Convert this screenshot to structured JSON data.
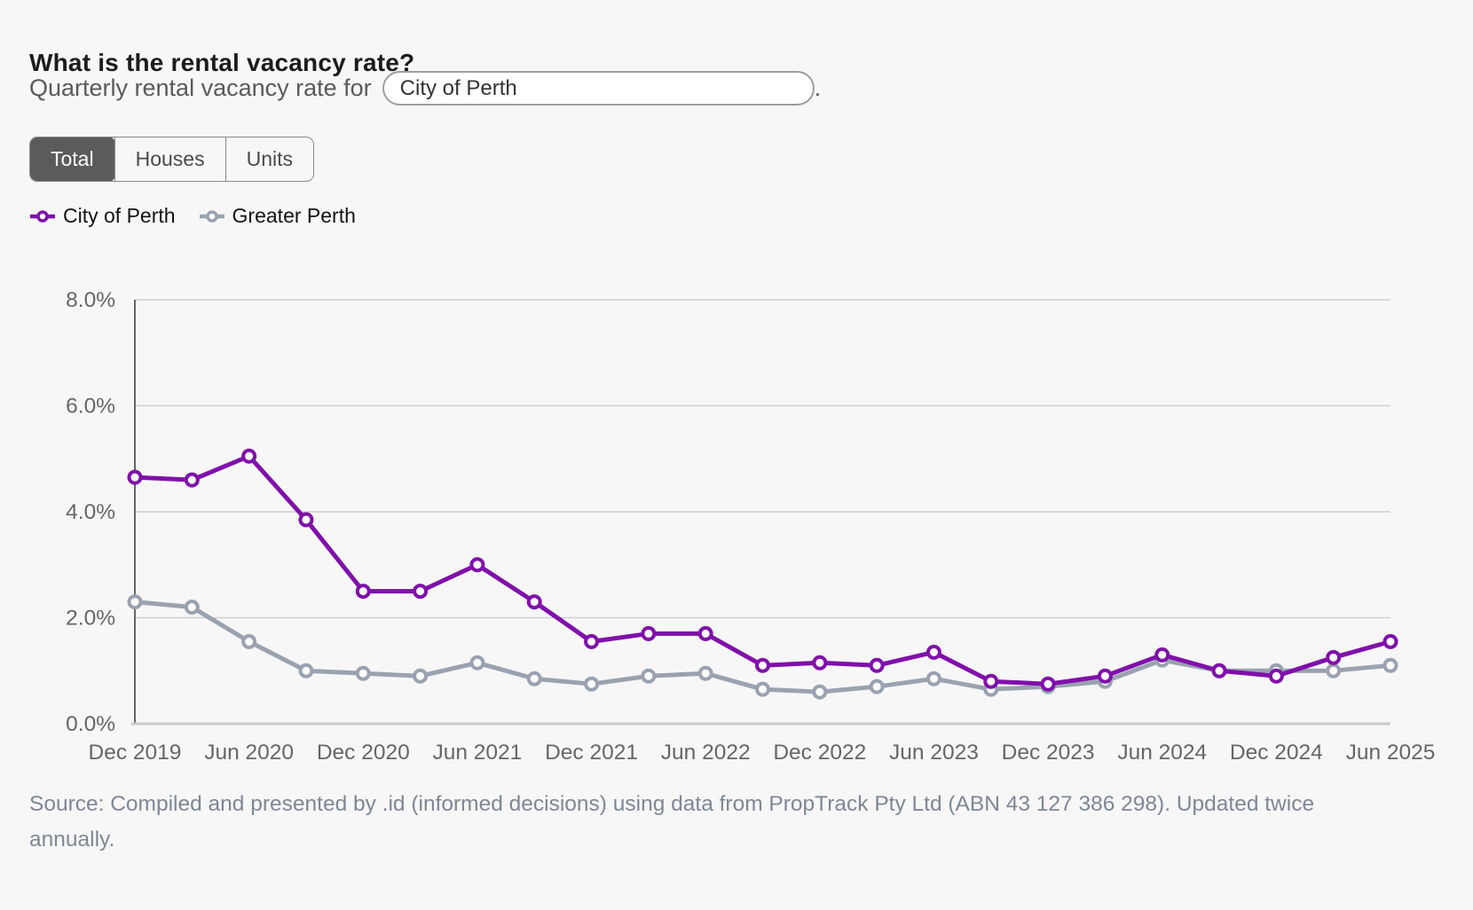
{
  "page": {
    "title": "What is the rental vacancy rate?",
    "subtitle_prefix": "Quarterly rental vacancy rate for",
    "subtitle_suffix": ".",
    "source": "Source: Compiled and presented by .id (informed decisions) using data from PropTrack Pty Ltd (ABN 43 127 386 298). Updated twice annually."
  },
  "area_selector": {
    "value": "City of Perth"
  },
  "tabs": [
    {
      "label": "Total",
      "selected": true
    },
    {
      "label": "Houses",
      "selected": false
    },
    {
      "label": "Units",
      "selected": false
    }
  ],
  "legend": [
    {
      "label": "City of Perth",
      "color": "#8010aa"
    },
    {
      "label": "Greater Perth",
      "color": "#9aa2b0"
    }
  ],
  "colors": {
    "background": "#f7f7f8",
    "series_city": "#8010aa",
    "series_greater": "#9aa2b0",
    "gridline": "#cfcfcf",
    "axis_left": "#666666",
    "axis_bottom": "#c9c9c9",
    "axis_text": "#666666",
    "source_text": "#7e8795",
    "selected_tab_bg": "#5c5a5d"
  },
  "chart_data": {
    "type": "line",
    "title": "",
    "xlabel": "",
    "ylabel": "",
    "ylim": [
      0,
      8
    ],
    "grid": true,
    "legend_position": "top-left",
    "x": [
      "Dec 2019",
      "Mar 2020",
      "Jun 2020",
      "Sep 2020",
      "Dec 2020",
      "Mar 2021",
      "Jun 2021",
      "Sep 2021",
      "Dec 2021",
      "Mar 2022",
      "Jun 2022",
      "Sep 2022",
      "Dec 2022",
      "Mar 2023",
      "Jun 2023",
      "Sep 2023",
      "Dec 2023",
      "Mar 2024",
      "Jun 2024",
      "Sep 2024",
      "Dec 2024",
      "Mar 2025",
      "Jun 2025"
    ],
    "x_tick_labels": [
      "Dec 2019",
      "Jun 2020",
      "Dec 2020",
      "Jun 2021",
      "Dec 2021",
      "Jun 2022",
      "Dec 2022",
      "Jun 2023",
      "Dec 2023",
      "Jun 2024",
      "Dec 2024",
      "Jun 2025"
    ],
    "y_tick_labels": [
      "0.0%",
      "2.0%",
      "4.0%",
      "6.0%",
      "8.0%"
    ],
    "y_tick_values": [
      0,
      2,
      4,
      6,
      8
    ],
    "unit": "%",
    "series": [
      {
        "name": "City of Perth",
        "color": "#8010aa",
        "values": [
          4.65,
          4.6,
          5.05,
          3.85,
          2.5,
          2.5,
          3.0,
          2.3,
          1.55,
          1.7,
          1.7,
          1.1,
          1.15,
          1.1,
          1.35,
          0.8,
          0.75,
          0.9,
          1.3,
          1.0,
          0.9,
          1.25,
          1.55
        ]
      },
      {
        "name": "Greater Perth",
        "color": "#9aa2b0",
        "values": [
          2.3,
          2.2,
          1.55,
          1.0,
          0.95,
          0.9,
          1.15,
          0.85,
          0.75,
          0.9,
          0.95,
          0.65,
          0.6,
          0.7,
          0.85,
          0.65,
          0.7,
          0.8,
          1.2,
          1.0,
          1.0,
          1.0,
          1.1
        ]
      }
    ]
  }
}
